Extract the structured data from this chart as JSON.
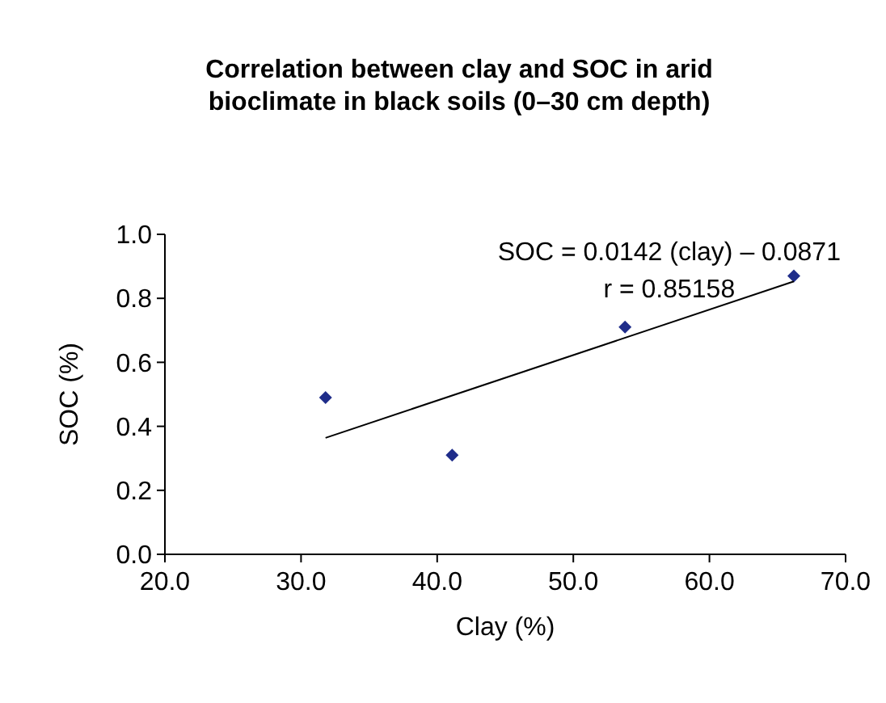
{
  "chart_data": {
    "type": "scatter",
    "title": "Correlation between clay and SOC in arid bioclimate in black soils (0–30 cm depth)",
    "xlabel": "Clay (%)",
    "ylabel": "SOC (%)",
    "xlim": [
      20,
      70
    ],
    "ylim": [
      0,
      1
    ],
    "xticks": [
      {
        "value": 20,
        "label": "20.0"
      },
      {
        "value": 30,
        "label": "30.0"
      },
      {
        "value": 40,
        "label": "40.0"
      },
      {
        "value": 50,
        "label": "50.0"
      },
      {
        "value": 60,
        "label": "60.0"
      },
      {
        "value": 70,
        "label": "70.0"
      }
    ],
    "yticks": [
      {
        "value": 0,
        "label": "0.0"
      },
      {
        "value": 0.2,
        "label": "0.2"
      },
      {
        "value": 0.4,
        "label": "0.4"
      },
      {
        "value": 0.6,
        "label": "0.6"
      },
      {
        "value": 0.8,
        "label": "0.8"
      },
      {
        "value": 1,
        "label": "1.0"
      }
    ],
    "grid": false,
    "series": [
      {
        "type": "scatter",
        "marker": "diamond",
        "color": "#1f2d8a",
        "x": [
          31.8,
          41.1,
          53.8,
          66.2
        ],
        "values": [
          0.49,
          0.31,
          0.71,
          0.87
        ]
      },
      {
        "type": "line",
        "color": "#000000",
        "x": [
          31.8,
          66.2
        ],
        "values": [
          0.364,
          0.853
        ]
      }
    ],
    "annotations": [
      "SOC = 0.0142 (clay) – 0.0871",
      "r = 0.85158"
    ]
  }
}
